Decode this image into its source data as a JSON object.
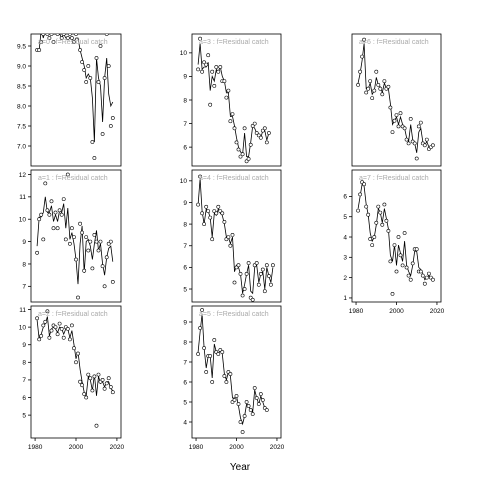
{
  "xlabel": "Year",
  "chart_data": [
    {
      "type": "scatter",
      "title": "a=0 : f=Residual catch",
      "xlim": [
        1978,
        2022
      ],
      "ylim": [
        6.5,
        9.8
      ],
      "yticks": [
        7.0,
        7.5,
        8.0,
        8.5,
        9.0,
        9.5
      ],
      "ytick_labels": [
        "7.0",
        "7.5",
        "8.0",
        "8.5",
        "9.0",
        "9.5"
      ],
      "x_ticks_shown": false,
      "x": [
        1981,
        1982,
        1983,
        1984,
        1985,
        1986,
        1987,
        1988,
        1989,
        1990,
        1991,
        1992,
        1993,
        1994,
        1995,
        1996,
        1997,
        1998,
        1999,
        2000,
        2001,
        2002,
        2003,
        2004,
        2005,
        2006,
        2007,
        2008,
        2009,
        2010,
        2011,
        2012,
        2013,
        2014,
        2015,
        2016,
        2017,
        2018
      ],
      "points": [
        9.4,
        9.4,
        9.6,
        9.8,
        9.9,
        9.8,
        9.7,
        9.8,
        9.6,
        9.9,
        9.8,
        9.9,
        9.7,
        9.8,
        9.9,
        9.7,
        9.8,
        9.7,
        9.6,
        9.8,
        9.9,
        9.4,
        9.1,
        8.9,
        8.6,
        9.0,
        8.7,
        7.1,
        6.7,
        9.2,
        8.6,
        9.5,
        7.3,
        8.7,
        9.8,
        9.0,
        7.5,
        7.7
      ],
      "fitted": [
        9.4,
        9.4,
        9.9,
        9.7,
        9.9,
        9.8,
        9.8,
        9.8,
        9.8,
        9.8,
        9.8,
        9.8,
        9.7,
        9.8,
        9.7,
        9.7,
        9.7,
        9.7,
        9.6,
        9.7,
        9.7,
        9.4,
        9.2,
        9.0,
        8.7,
        8.8,
        8.7,
        8.2,
        7.1,
        9.2,
        8.7,
        8.5,
        7.6,
        8.7,
        9.2,
        8.3,
        8.0,
        8.1
      ]
    },
    {
      "type": "scatter",
      "title": "a=1 : f=Residual catch",
      "xlim": [
        1978,
        2022
      ],
      "ylim": [
        6.3,
        12.2
      ],
      "yticks": [
        7,
        8,
        9,
        10,
        11,
        12
      ],
      "ytick_labels": [
        "7",
        "8",
        "9",
        "10",
        "11",
        "12"
      ],
      "x_ticks_shown": false,
      "x": [
        1981,
        1982,
        1983,
        1984,
        1985,
        1986,
        1987,
        1988,
        1989,
        1990,
        1991,
        1992,
        1993,
        1994,
        1995,
        1996,
        1997,
        1998,
        1999,
        2000,
        2001,
        2002,
        2003,
        2004,
        2005,
        2006,
        2007,
        2008,
        2009,
        2010,
        2011,
        2012,
        2013,
        2014,
        2015,
        2016,
        2017,
        2018
      ],
      "points": [
        8.5,
        10.0,
        10.2,
        9.1,
        11.6,
        10.4,
        10.2,
        10.8,
        9.6,
        10.3,
        9.6,
        10.4,
        10.2,
        10.9,
        9.1,
        12.0,
        8.9,
        9.6,
        9.2,
        8.2,
        6.5,
        9.8,
        9.4,
        7.7,
        9.2,
        8.6,
        9.0,
        7.8,
        9.3,
        9.0,
        8.6,
        9.0,
        7.9,
        7.0,
        8.3,
        8.9,
        9.0,
        7.2
      ],
      "fitted": [
        8.8,
        10.1,
        10.1,
        10.3,
        11.0,
        10.3,
        10.3,
        10.6,
        9.9,
        10.2,
        9.9,
        10.4,
        10.3,
        10.7,
        9.6,
        10.5,
        9.1,
        9.4,
        8.9,
        8.2,
        7.1,
        8.9,
        9.7,
        7.6,
        9.0,
        9.1,
        8.8,
        8.2,
        8.9,
        9.5,
        8.6,
        8.9,
        8.0,
        7.5,
        8.3,
        8.7,
        8.8,
        8.1
      ]
    },
    {
      "type": "scatter",
      "title": "a=2 : f=Residual catch",
      "xlim": [
        1978,
        2022
      ],
      "ylim": [
        3.7,
        11.2
      ],
      "yticks": [
        5,
        6,
        7,
        8,
        9,
        10,
        11
      ],
      "ytick_labels": [
        "5",
        "6",
        "7",
        "8",
        "9",
        "10",
        "11"
      ],
      "x_ticks_shown": true,
      "xticks": [
        1980,
        2000,
        2020
      ],
      "xtick_labels": [
        "1980",
        "2000",
        "2020"
      ],
      "x": [
        1981,
        1982,
        1983,
        1984,
        1985,
        1986,
        1987,
        1988,
        1989,
        1990,
        1991,
        1992,
        1993,
        1994,
        1995,
        1996,
        1997,
        1998,
        1999,
        2000,
        2001,
        2002,
        2003,
        2004,
        2005,
        2006,
        2007,
        2008,
        2009,
        2010,
        2011,
        2012,
        2013,
        2014,
        2015,
        2016,
        2017,
        2018
      ],
      "points": [
        10.5,
        9.3,
        9.5,
        10.1,
        10.3,
        10.9,
        9.4,
        9.8,
        10.1,
        10.0,
        9.6,
        10.2,
        9.9,
        9.4,
        10.0,
        9.9,
        9.3,
        10.1,
        8.8,
        8.0,
        8.5,
        6.9,
        6.7,
        6.2,
        6.0,
        7.3,
        7.1,
        6.4,
        7.2,
        4.4,
        7.3,
        6.9,
        7.0,
        6.5,
        6.8,
        7.1,
        6.6,
        6.3
      ],
      "fitted": [
        10.4,
        9.3,
        9.6,
        10.0,
        10.2,
        10.6,
        9.5,
        9.9,
        10.0,
        9.9,
        9.7,
        10.0,
        9.9,
        9.6,
        9.9,
        9.9,
        9.4,
        9.8,
        9.0,
        8.2,
        8.6,
        7.6,
        6.9,
        6.3,
        6.1,
        7.2,
        7.0,
        6.4,
        7.3,
        6.1,
        7.2,
        6.8,
        6.9,
        6.6,
        6.9,
        6.9,
        6.5,
        6.4
      ]
    },
    {
      "type": "scatter",
      "title": "a=3 : f=Residual catch",
      "xlim": [
        1978,
        2022
      ],
      "ylim": [
        5.2,
        10.8
      ],
      "yticks": [
        6,
        7,
        8,
        9,
        10
      ],
      "ytick_labels": [
        "6",
        "7",
        "8",
        "9",
        "10"
      ],
      "x_ticks_shown": false,
      "x": [
        1981,
        1982,
        1983,
        1984,
        1985,
        1986,
        1987,
        1988,
        1989,
        1990,
        1991,
        1992,
        1993,
        1994,
        1995,
        1996,
        1997,
        1998,
        1999,
        2000,
        2001,
        2002,
        2003,
        2004,
        2005,
        2006,
        2007,
        2008,
        2009,
        2010,
        2011,
        2012,
        2013,
        2014,
        2015,
        2016
      ],
      "points": [
        9.3,
        10.6,
        9.2,
        9.6,
        9.5,
        9.9,
        7.8,
        9.2,
        8.6,
        9.4,
        9.2,
        9.4,
        8.8,
        8.8,
        8.1,
        8.4,
        7.1,
        7.4,
        6.8,
        6.2,
        5.9,
        5.6,
        5.7,
        6.8,
        5.4,
        5.5,
        6.1,
        6.9,
        7.0,
        6.6,
        6.5,
        6.4,
        6.7,
        6.8,
        6.2,
        6.6
      ],
      "fitted": [
        9.5,
        10.4,
        9.3,
        9.4,
        9.4,
        9.6,
        8.4,
        9.0,
        8.8,
        9.3,
        9.2,
        9.4,
        9.0,
        8.8,
        8.3,
        8.3,
        7.3,
        7.3,
        6.9,
        6.4,
        6.0,
        5.8,
        5.7,
        6.6,
        5.6,
        5.6,
        6.2,
        6.9,
        6.8,
        6.6,
        6.5,
        6.4,
        6.7,
        6.7,
        6.3,
        6.6
      ]
    },
    {
      "type": "scatter",
      "title": "a=4 : f=Residual catch",
      "xlim": [
        1978,
        2022
      ],
      "ylim": [
        4.4,
        10.5
      ],
      "yticks": [
        5,
        6,
        7,
        8,
        9,
        10
      ],
      "ytick_labels": [
        "5",
        "6",
        "7",
        "8",
        "9",
        "10"
      ],
      "x_ticks_shown": false,
      "x": [
        1981,
        1982,
        1983,
        1984,
        1985,
        1986,
        1987,
        1988,
        1989,
        1990,
        1991,
        1992,
        1993,
        1994,
        1995,
        1996,
        1997,
        1998,
        1999,
        2000,
        2001,
        2002,
        2003,
        2004,
        2005,
        2006,
        2007,
        2008,
        2009,
        2010,
        2011,
        2012,
        2013,
        2014,
        2015,
        2016,
        2017,
        2018
      ],
      "points": [
        8.9,
        10.2,
        8.5,
        8.0,
        8.8,
        8.6,
        8.3,
        7.3,
        8.6,
        8.5,
        8.8,
        8.6,
        8.5,
        8.1,
        7.3,
        7.4,
        7.0,
        7.5,
        5.3,
        6.0,
        6.1,
        5.7,
        4.7,
        5.0,
        5.7,
        6.2,
        4.6,
        4.5,
        6.1,
        6.2,
        5.2,
        5.7,
        5.9,
        4.9,
        6.1,
        5.6,
        5.2,
        6.1
      ],
      "fitted": [
        8.9,
        10.1,
        8.6,
        8.0,
        8.7,
        8.6,
        8.3,
        7.4,
        8.5,
        8.4,
        8.7,
        8.5,
        8.4,
        8.0,
        7.4,
        7.4,
        7.1,
        7.4,
        5.8,
        6.1,
        6.0,
        5.7,
        4.8,
        5.2,
        5.7,
        6.1,
        4.9,
        4.8,
        6.0,
        6.1,
        5.3,
        5.7,
        5.8,
        5.0,
        6.0,
        5.6,
        5.3,
        6.0
      ]
    },
    {
      "type": "scatter",
      "title": "a=5 : f=Residual catch",
      "xlim": [
        1978,
        2022
      ],
      "ylim": [
        3.2,
        9.8
      ],
      "yticks": [
        4,
        5,
        6,
        7,
        8,
        9
      ],
      "ytick_labels": [
        "4",
        "5",
        "6",
        "7",
        "8",
        "9"
      ],
      "x_ticks_shown": true,
      "xticks": [
        1980,
        2000,
        2020
      ],
      "xtick_labels": [
        "1980",
        "2000",
        "2020"
      ],
      "x": [
        1981,
        1982,
        1983,
        1984,
        1985,
        1986,
        1987,
        1988,
        1989,
        1990,
        1991,
        1992,
        1993,
        1994,
        1995,
        1996,
        1997,
        1998,
        1999,
        2000,
        2001,
        2002,
        2003,
        2004,
        2005,
        2006,
        2007,
        2008,
        2009,
        2010,
        2011,
        2012,
        2013,
        2014,
        2015
      ],
      "points": [
        7.4,
        8.7,
        9.6,
        7.7,
        6.5,
        7.3,
        7.3,
        6.0,
        8.1,
        7.5,
        7.4,
        7.6,
        7.5,
        6.3,
        6.0,
        6.5,
        6.4,
        5.0,
        5.1,
        5.3,
        4.9,
        4.0,
        3.5,
        4.3,
        5.0,
        4.8,
        4.6,
        4.4,
        5.7,
        5.2,
        4.9,
        5.4,
        5.1,
        4.7,
        4.6
      ],
      "fitted": [
        7.5,
        8.5,
        9.4,
        7.7,
        6.7,
        7.3,
        7.3,
        6.2,
        7.9,
        7.5,
        7.4,
        7.6,
        7.4,
        6.4,
        6.1,
        6.5,
        6.3,
        5.2,
        5.2,
        5.3,
        4.8,
        4.2,
        3.9,
        4.3,
        4.9,
        4.8,
        4.6,
        4.5,
        5.6,
        5.2,
        4.9,
        5.3,
        5.0,
        4.7,
        4.6
      ]
    },
    {
      "type": "scatter",
      "title": "a=6 : f=Residual catch",
      "xlim": [
        1978,
        2022
      ],
      "ylim": [
        1.8,
        8.8
      ],
      "yticks": [],
      "ytick_labels": [],
      "x_ticks_shown": false,
      "x": [
        1981,
        1982,
        1983,
        1984,
        1985,
        1986,
        1987,
        1988,
        1989,
        1990,
        1991,
        1992,
        1993,
        1994,
        1995,
        1996,
        1997,
        1998,
        1999,
        2000,
        2001,
        2002,
        2003,
        2004,
        2005,
        2006,
        2007,
        2008,
        2009,
        2010,
        2011,
        2012,
        2013,
        2014,
        2015,
        2016,
        2017,
        2018
      ],
      "points": [
        6.1,
        6.8,
        7.6,
        8.5,
        5.7,
        5.9,
        6.3,
        5.4,
        5.8,
        6.8,
        6.1,
        5.9,
        5.6,
        6.3,
        5.9,
        6.0,
        4.9,
        3.6,
        4.2,
        4.5,
        3.9,
        4.6,
        3.9,
        3.8,
        3.2,
        3.0,
        4.3,
        3.1,
        3.0,
        2.2,
        3.9,
        4.1,
        3.0,
        2.9,
        3.2,
        2.7,
        2.8,
        2.9
      ],
      "fitted": [
        6.2,
        6.7,
        7.4,
        8.3,
        5.9,
        5.9,
        6.2,
        5.6,
        5.8,
        6.5,
        6.1,
        6.0,
        5.7,
        6.2,
        5.9,
        5.9,
        5.1,
        4.0,
        4.2,
        4.4,
        4.0,
        4.4,
        4.0,
        3.8,
        3.3,
        3.1,
        4.0,
        3.2,
        3.0,
        2.5,
        3.6,
        3.8,
        3.1,
        2.9,
        3.1,
        2.8,
        2.8,
        2.9
      ]
    },
    {
      "type": "scatter",
      "title": "a=7 : f=Residual catch",
      "xlim": [
        1978,
        2022
      ],
      "ylim": [
        0.8,
        7.3
      ],
      "yticks": [
        1,
        2,
        3,
        4,
        5,
        6
      ],
      "ytick_labels": [
        "1",
        "2",
        "3",
        "4",
        "5",
        "6"
      ],
      "x_ticks_shown": true,
      "xticks": [
        1980,
        2000,
        2020
      ],
      "xtick_labels": [
        "1980",
        "2000",
        "2020"
      ],
      "x": [
        1981,
        1982,
        1983,
        1984,
        1985,
        1986,
        1987,
        1988,
        1989,
        1990,
        1991,
        1992,
        1993,
        1994,
        1995,
        1996,
        1997,
        1998,
        1999,
        2000,
        2001,
        2002,
        2003,
        2004,
        2005,
        2006,
        2007,
        2008,
        2009,
        2010,
        2011,
        2012,
        2013,
        2014,
        2015,
        2016,
        2017,
        2018
      ],
      "points": [
        5.3,
        6.1,
        6.7,
        6.6,
        5.5,
        5.1,
        3.9,
        3.6,
        4.0,
        4.7,
        5.5,
        5.2,
        4.6,
        5.6,
        4.8,
        4.3,
        2.8,
        1.2,
        3.6,
        2.3,
        4.0,
        3.1,
        2.6,
        4.2,
        2.5,
        2.1,
        1.9,
        2.7,
        3.4,
        3.4,
        2.3,
        2.3,
        2.1,
        1.7,
        2.0,
        2.2,
        2.0,
        1.9
      ],
      "fitted": [
        5.4,
        6.0,
        6.6,
        6.5,
        5.6,
        5.1,
        4.2,
        3.8,
        4.0,
        4.6,
        5.4,
        5.2,
        4.7,
        5.4,
        4.9,
        4.4,
        3.1,
        2.8,
        3.6,
        2.6,
        3.6,
        3.2,
        2.8,
        3.8,
        2.6,
        2.3,
        2.1,
        2.6,
        3.3,
        3.3,
        2.5,
        2.4,
        2.2,
        1.9,
        2.0,
        2.1,
        2.0,
        1.9
      ]
    }
  ]
}
